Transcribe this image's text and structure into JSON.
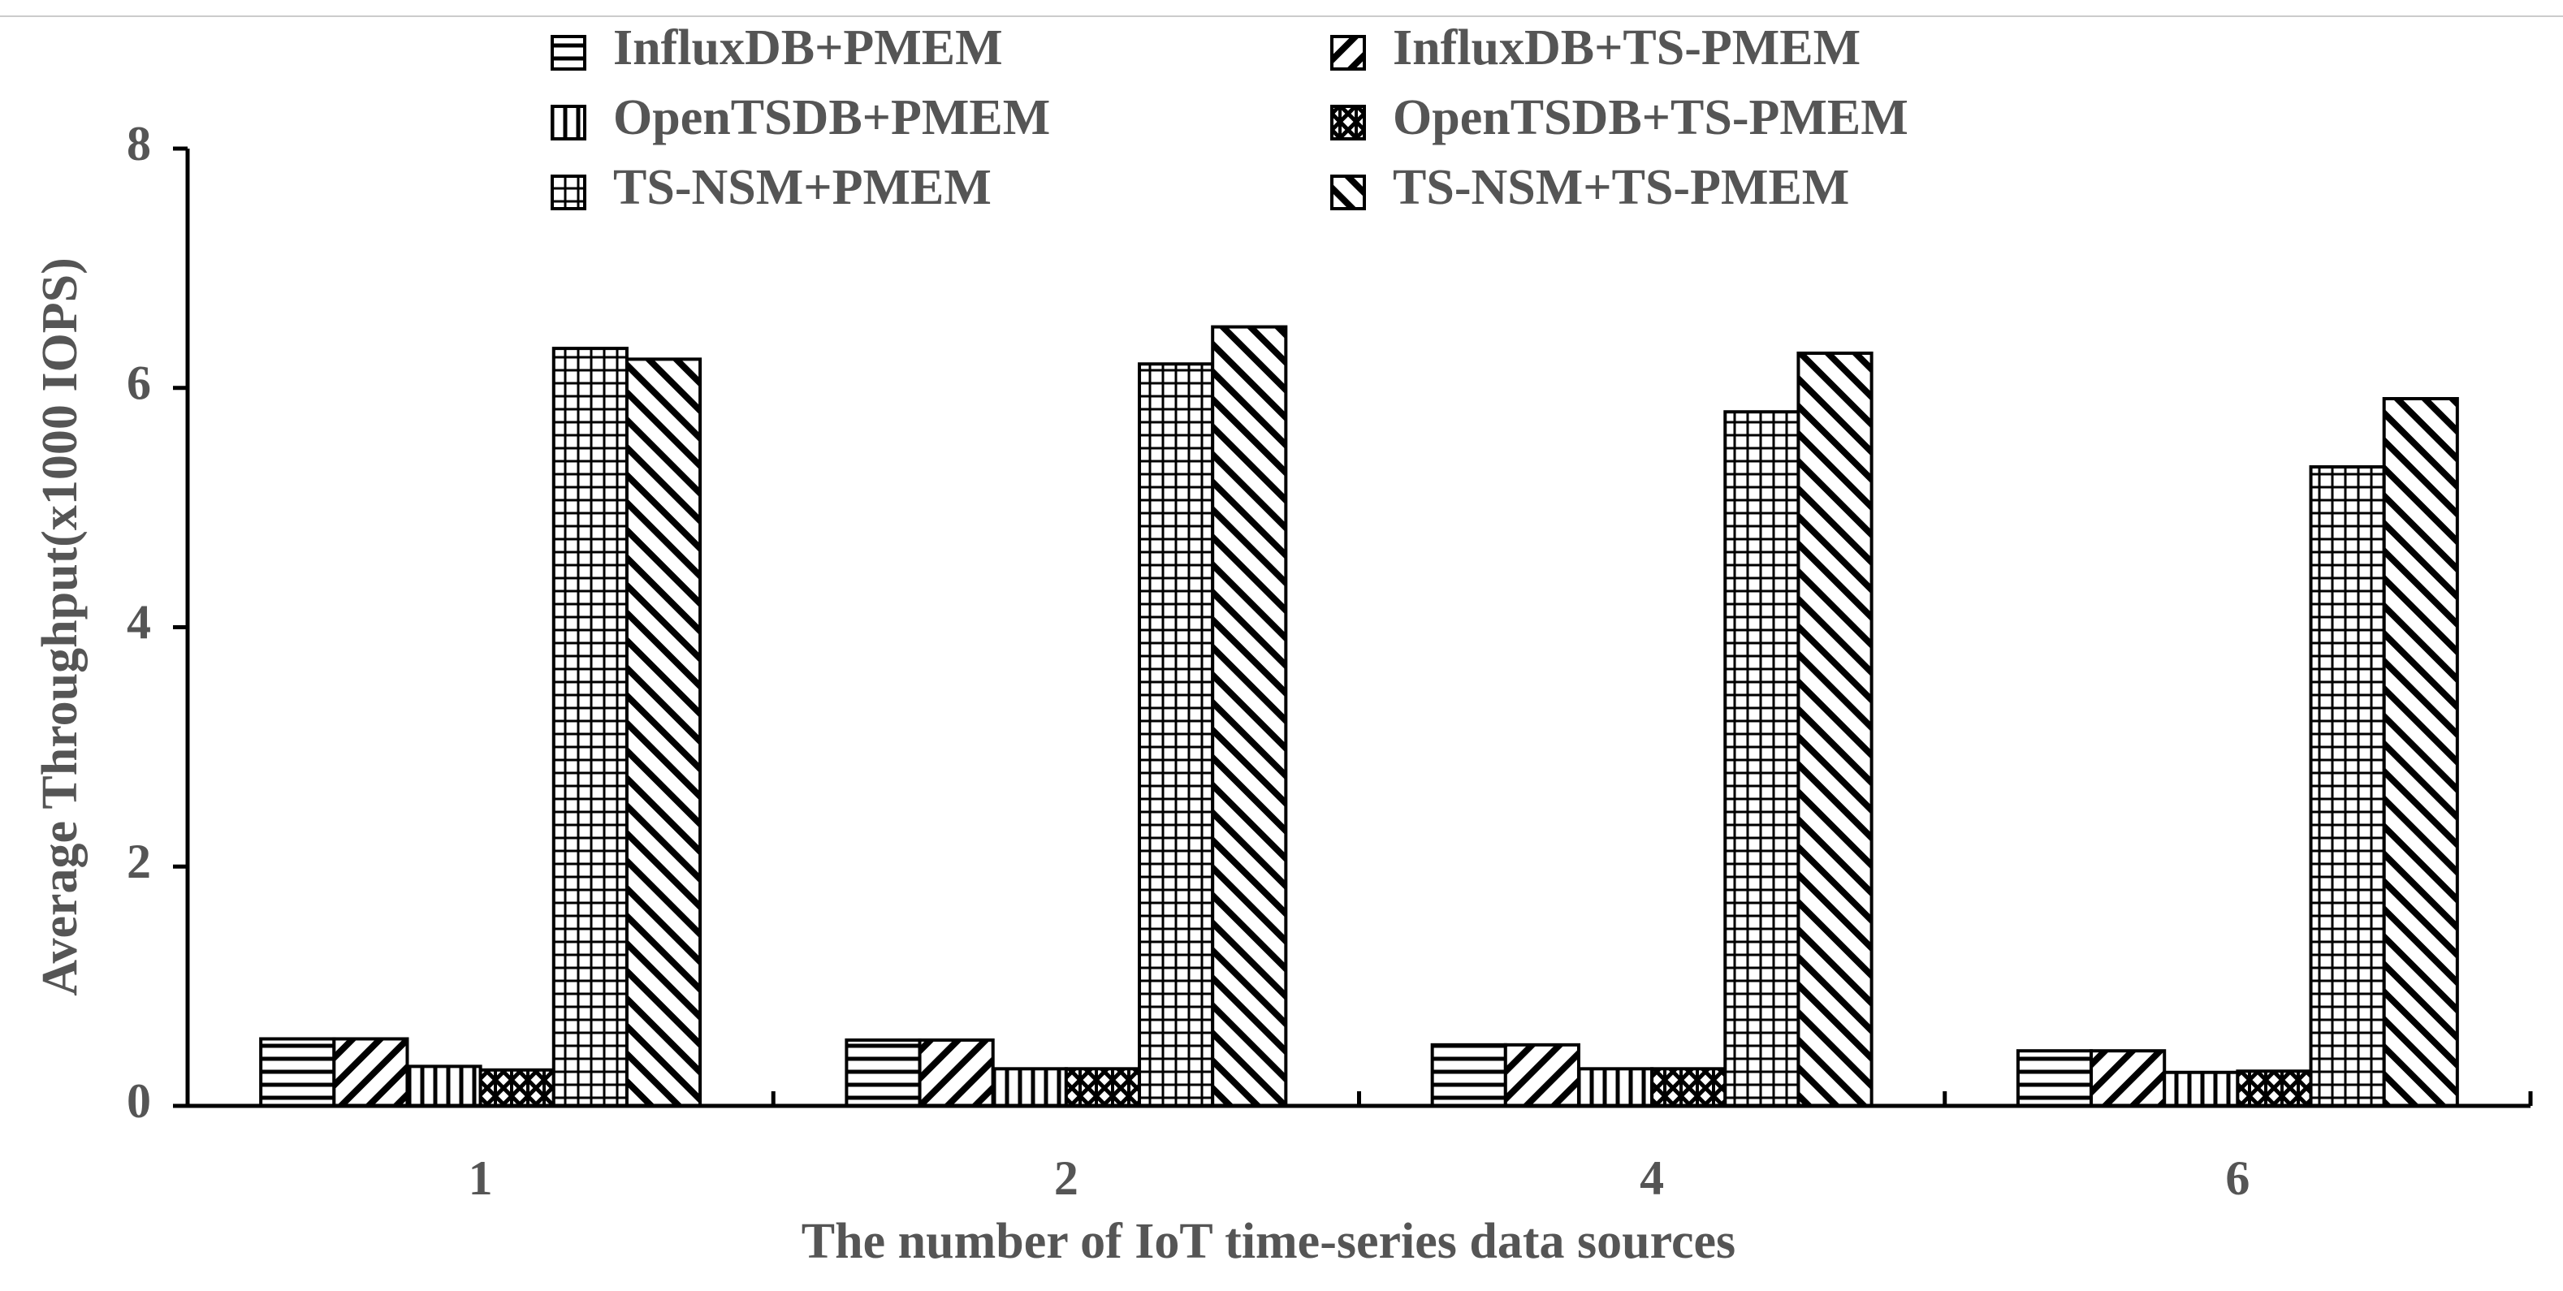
{
  "chart_data": {
    "type": "bar",
    "x_label": "The number of IoT time-series data sources",
    "y_label": "Average Throughput(x1000 IOPS)",
    "categories": [
      "1",
      "2",
      "4",
      "6"
    ],
    "series": [
      {
        "name": "InfluxDB+PMEM",
        "pattern": "horizontal",
        "color": "#000000",
        "values": [
          0.56,
          0.55,
          0.51,
          0.46
        ]
      },
      {
        "name": "InfluxDB+TS-PMEM",
        "pattern": "backslash",
        "color": "#000000",
        "values": [
          0.56,
          0.55,
          0.51,
          0.46
        ]
      },
      {
        "name": "OpenTSDB+PMEM",
        "pattern": "vertical",
        "color": "#000000",
        "values": [
          0.33,
          0.31,
          0.31,
          0.28
        ]
      },
      {
        "name": "OpenTSDB+TS-PMEM",
        "pattern": "cross",
        "color": "#000000",
        "values": [
          0.3,
          0.31,
          0.31,
          0.29
        ]
      },
      {
        "name": "TS-NSM+PMEM",
        "pattern": "grid",
        "color": "#000000",
        "values": [
          6.33,
          6.2,
          5.8,
          5.34
        ]
      },
      {
        "name": "TS-NSM+TS-PMEM",
        "pattern": "slash",
        "color": "#000000",
        "values": [
          6.24,
          6.51,
          6.29,
          5.91
        ]
      }
    ],
    "ylim": [
      0,
      8
    ],
    "yticks": [
      0,
      2,
      4,
      6,
      8
    ],
    "grid": false
  }
}
